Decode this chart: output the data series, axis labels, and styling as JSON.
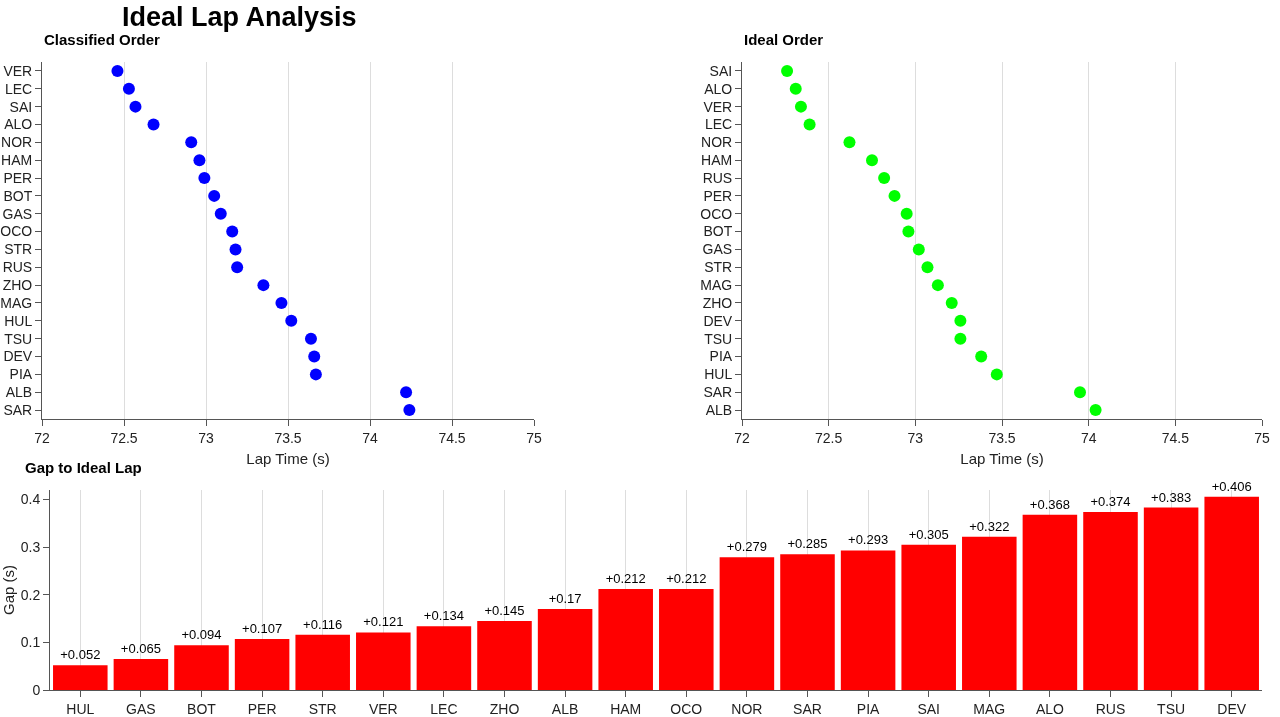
{
  "chart_data": [
    {
      "type": "scatter",
      "title": "Ideal Lap Analysis",
      "subtitle": "Classified Order",
      "xlabel": "Lap Time (s)",
      "orientation": "horizontal",
      "marker": "circle",
      "grid": "x",
      "categories": [
        "VER",
        "LEC",
        "SAI",
        "ALO",
        "NOR",
        "HAM",
        "PER",
        "BOT",
        "GAS",
        "OCO",
        "STR",
        "RUS",
        "ZHO",
        "MAG",
        "HUL",
        "TSU",
        "DEV",
        "PIA",
        "ALB",
        "SAR"
      ],
      "series": [
        {
          "color": "#0000ff",
          "values": [
            72.46,
            72.53,
            72.57,
            72.68,
            72.91,
            72.96,
            72.99,
            73.05,
            73.09,
            73.16,
            73.18,
            73.19,
            73.35,
            73.46,
            73.52,
            73.64,
            73.66,
            73.67,
            74.22,
            74.24
          ]
        }
      ],
      "xlim": [
        72,
        75
      ],
      "xticks": [
        72,
        72.5,
        73,
        73.5,
        74,
        74.5,
        75
      ]
    },
    {
      "type": "scatter",
      "title": "Ideal Order",
      "xlabel": "Lap Time (s)",
      "orientation": "horizontal",
      "marker": "circle",
      "grid": "x",
      "categories": [
        "SAI",
        "ALO",
        "VER",
        "LEC",
        "NOR",
        "HAM",
        "RUS",
        "PER",
        "OCO",
        "BOT",
        "GAS",
        "STR",
        "MAG",
        "ZHO",
        "DEV",
        "TSU",
        "PIA",
        "HUL",
        "SAR",
        "ALB"
      ],
      "series": [
        {
          "color": "#00ff00",
          "values": [
            72.26,
            72.31,
            72.34,
            72.39,
            72.62,
            72.75,
            72.82,
            72.88,
            72.95,
            72.96,
            73.02,
            73.07,
            73.13,
            73.21,
            73.26,
            73.26,
            73.38,
            73.47,
            73.95,
            74.04
          ]
        }
      ],
      "xlim": [
        72,
        75
      ],
      "xticks": [
        72,
        72.5,
        73,
        73.5,
        74,
        74.5,
        75
      ]
    },
    {
      "type": "bar",
      "title": "Gap to Ideal Lap",
      "ylabel": "Gap (s)",
      "grid": "x",
      "categories": [
        "HUL",
        "GAS",
        "BOT",
        "PER",
        "STR",
        "VER",
        "LEC",
        "ZHO",
        "ALB",
        "HAM",
        "OCO",
        "NOR",
        "SAR",
        "PIA",
        "SAI",
        "MAG",
        "ALO",
        "RUS",
        "TSU",
        "DEV"
      ],
      "series": [
        {
          "color": "#ff0000",
          "values": [
            0.052,
            0.065,
            0.094,
            0.107,
            0.116,
            0.121,
            0.134,
            0.145,
            0.17,
            0.212,
            0.212,
            0.279,
            0.285,
            0.293,
            0.305,
            0.322,
            0.368,
            0.374,
            0.383,
            0.406
          ],
          "value_labels": [
            "+0.052",
            "+0.065",
            "+0.094",
            "+0.107",
            "+0.116",
            "+0.121",
            "+0.134",
            "+0.145",
            "+0.17",
            "+0.212",
            "+0.212",
            "+0.279",
            "+0.285",
            "+0.293",
            "+0.305",
            "+0.322",
            "+0.368",
            "+0.374",
            "+0.383",
            "+0.406"
          ]
        }
      ],
      "ylim": [
        0,
        0.42
      ],
      "yticks": [
        0,
        0.1,
        0.2,
        0.3,
        0.4
      ]
    }
  ]
}
